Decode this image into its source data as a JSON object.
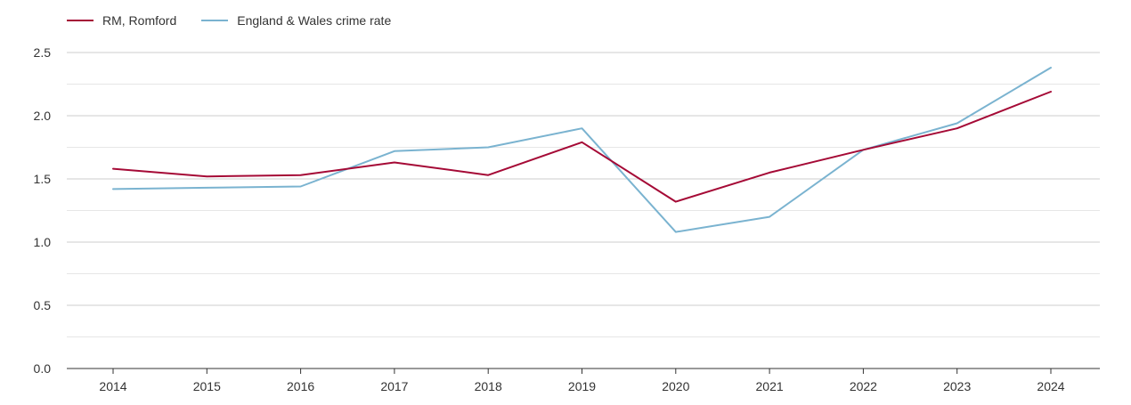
{
  "chart_data": {
    "type": "line",
    "title": "",
    "xlabel": "",
    "ylabel": "",
    "x": [
      "2014",
      "2015",
      "2016",
      "2017",
      "2018",
      "2019",
      "2020",
      "2021",
      "2022",
      "2023",
      "2024"
    ],
    "ylim": [
      0,
      2.5
    ],
    "yticks": [
      "0.0",
      "0.5",
      "1.0",
      "1.5",
      "2.0",
      "2.5"
    ],
    "grid": true,
    "legend_position": "top-left",
    "series": [
      {
        "name": "RM, Romford",
        "color": "#a50a36",
        "values": [
          1.58,
          1.52,
          1.53,
          1.63,
          1.53,
          1.79,
          1.32,
          1.55,
          1.73,
          1.9,
          2.19
        ]
      },
      {
        "name": "England & Wales crime rate",
        "color": "#7ab3d0",
        "values": [
          1.42,
          1.43,
          1.44,
          1.72,
          1.75,
          1.9,
          1.08,
          1.2,
          1.73,
          1.94,
          2.38
        ]
      }
    ]
  }
}
